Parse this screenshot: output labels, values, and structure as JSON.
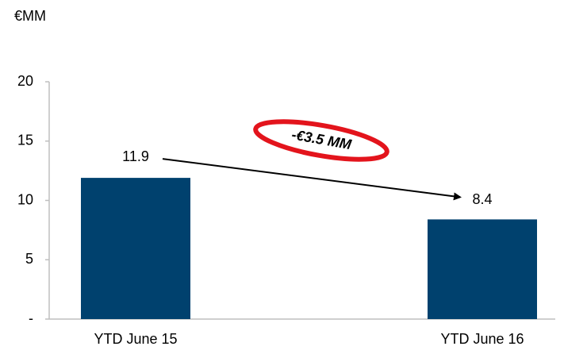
{
  "chart_data": {
    "type": "bar",
    "y_label": "€MM",
    "categories": [
      "YTD June 15",
      "YTD June 16"
    ],
    "values": [
      11.9,
      8.4
    ],
    "color": "#00416e",
    "ylim": [
      0,
      20
    ],
    "yticks": [
      {
        "value": 0,
        "label": "-"
      },
      5,
      10,
      15,
      20
    ],
    "annotation": "-€3.5 MM",
    "annotation_color": "#e3141c"
  }
}
